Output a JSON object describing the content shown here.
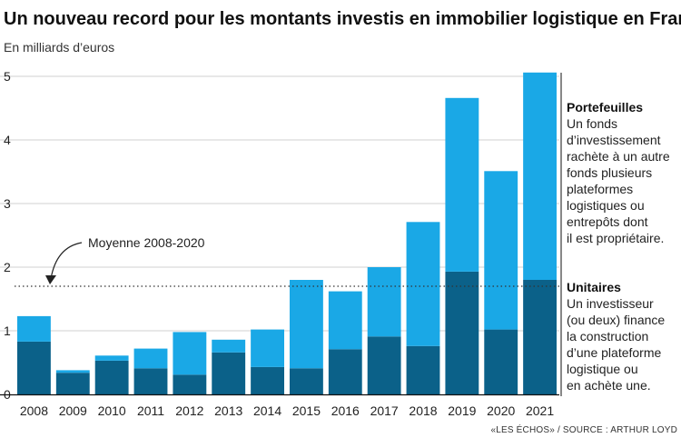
{
  "chart_data": {
    "type": "bar",
    "stacked": true,
    "title": "Un nouveau record pour les montants investis en immobilier logistique en France",
    "subtitle": "En milliards d’euros",
    "categories": [
      "2008",
      "2009",
      "2010",
      "2011",
      "2012",
      "2013",
      "2014",
      "2015",
      "2016",
      "2017",
      "2018",
      "2019",
      "2020",
      "2021"
    ],
    "series": [
      {
        "name": "Unitaires",
        "color": "#0b6189",
        "values": [
          0.83,
          0.34,
          0.53,
          0.41,
          0.31,
          0.66,
          0.43,
          0.41,
          0.71,
          0.91,
          0.76,
          1.93,
          1.02,
          1.8
        ]
      },
      {
        "name": "Portefeuilles",
        "color": "#1aa8e6",
        "values": [
          0.4,
          0.04,
          0.08,
          0.31,
          0.67,
          0.2,
          0.59,
          1.39,
          0.91,
          1.09,
          1.95,
          2.73,
          2.49,
          3.26
        ]
      }
    ],
    "ylim": [
      0,
      5
    ],
    "yticks": [
      "0",
      "1",
      "2",
      "3",
      "4",
      "5"
    ],
    "grid": true,
    "average": {
      "label": "Moyenne 2008-2020",
      "value": 1.7
    },
    "legend": {
      "placement": "right",
      "entries": [
        {
          "title": "Portefeuilles",
          "description": [
            "Un fonds",
            "d’investissement",
            "rachète à un autre",
            "fonds plusieurs",
            "plateformes",
            "logistiques ou",
            "entrepôts dont",
            "il est propriétaire."
          ]
        },
        {
          "title": "Unitaires",
          "description": [
            "Un investisseur",
            "(ou deux) finance",
            "la construction",
            "d’une plateforme",
            "logistique ou",
            "en achète une."
          ]
        }
      ]
    },
    "source": "«LES ÉCHOS» / SOURCE : ARTHUR LOYD"
  }
}
